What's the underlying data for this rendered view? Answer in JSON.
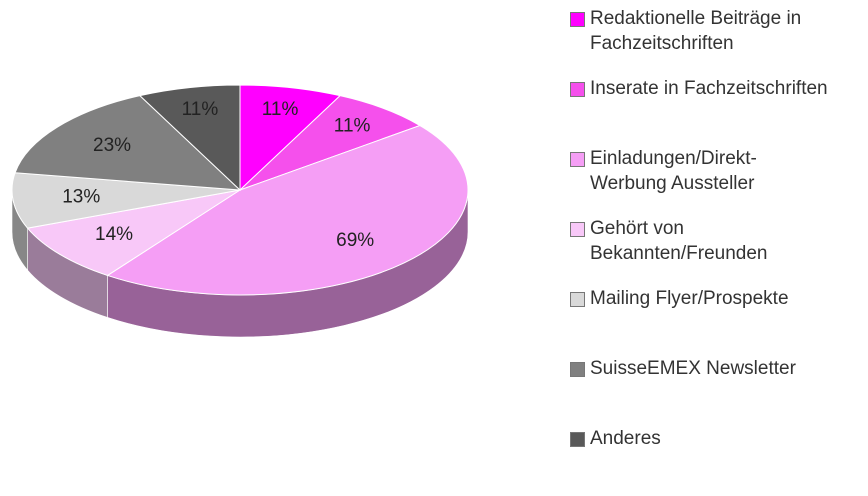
{
  "chart_data": {
    "type": "pie",
    "categories": [
      "Redaktionelle Beiträge in Fachzeitschriften",
      "Inserate in Fachzeitschriften",
      "Einladungen/Direkt-Werbung Aussteller",
      "Gehört von Bekannten/Freunden",
      "Mailing Flyer/Prospekte",
      "SuisseEMEX Newsletter",
      "Anderes"
    ],
    "values": [
      11,
      11,
      69,
      14,
      13,
      23,
      11
    ],
    "value_labels": [
      "11%",
      "11%",
      "69%",
      "14%",
      "13%",
      "23%",
      "11%"
    ],
    "colors": [
      "#ff00ff",
      "#f550ec",
      "#f59ef5",
      "#f8c8f8",
      "#d9d9d9",
      "#808080",
      "#595959"
    ],
    "legend": "right"
  }
}
